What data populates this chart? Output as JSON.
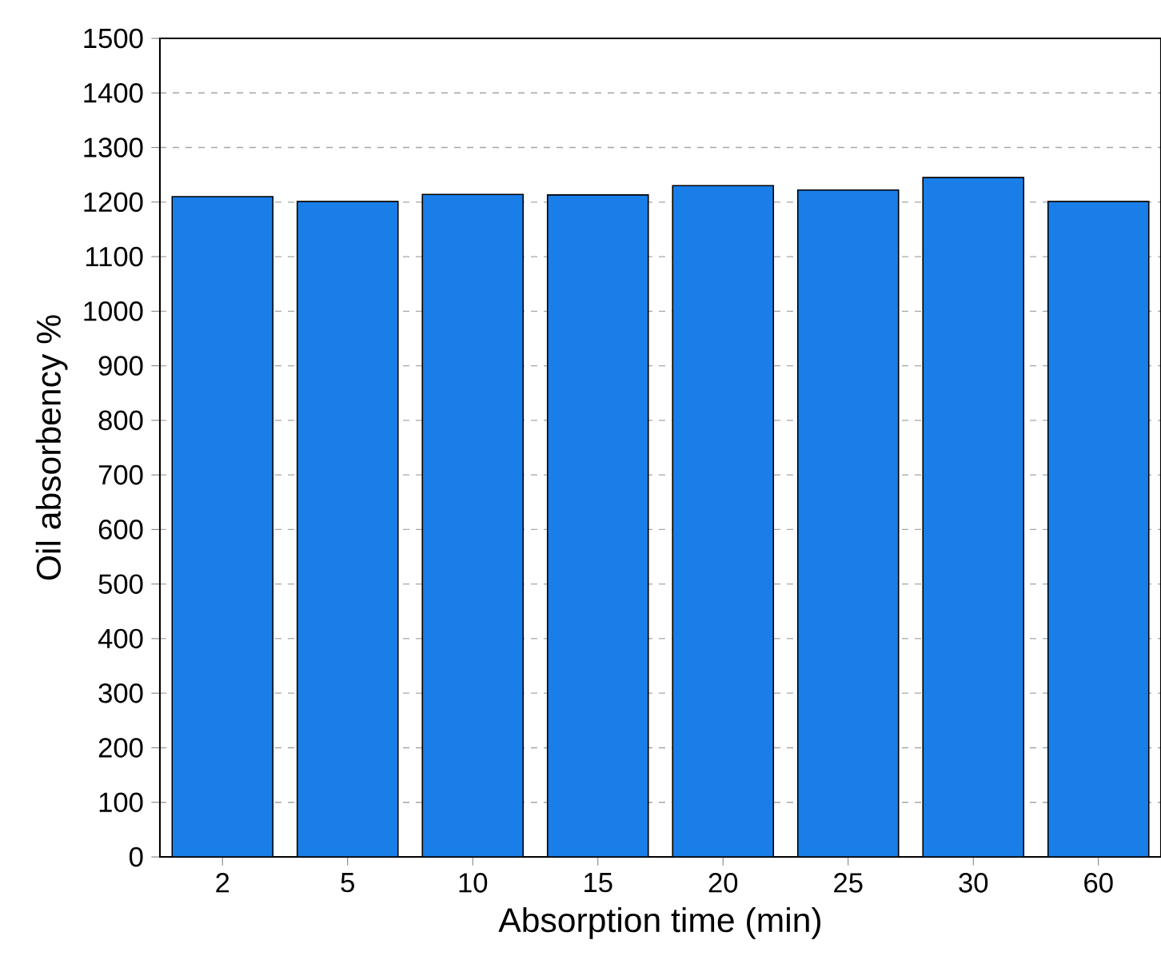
{
  "chart_data": {
    "type": "bar",
    "xlabel": "Absorption time (min)",
    "ylabel": "Oil absorbency %",
    "categories": [
      "2",
      "5",
      "10",
      "15",
      "20",
      "25",
      "30",
      "60"
    ],
    "values": [
      1210,
      1201,
      1214,
      1213,
      1230,
      1222,
      1245,
      1201
    ],
    "color": "#1a7ee8",
    "ylim": [
      0,
      1500
    ],
    "yticks": [
      0,
      100,
      200,
      300,
      400,
      500,
      600,
      700,
      800,
      900,
      1000,
      1100,
      1200,
      1300,
      1400,
      1500
    ],
    "grid": "y"
  }
}
